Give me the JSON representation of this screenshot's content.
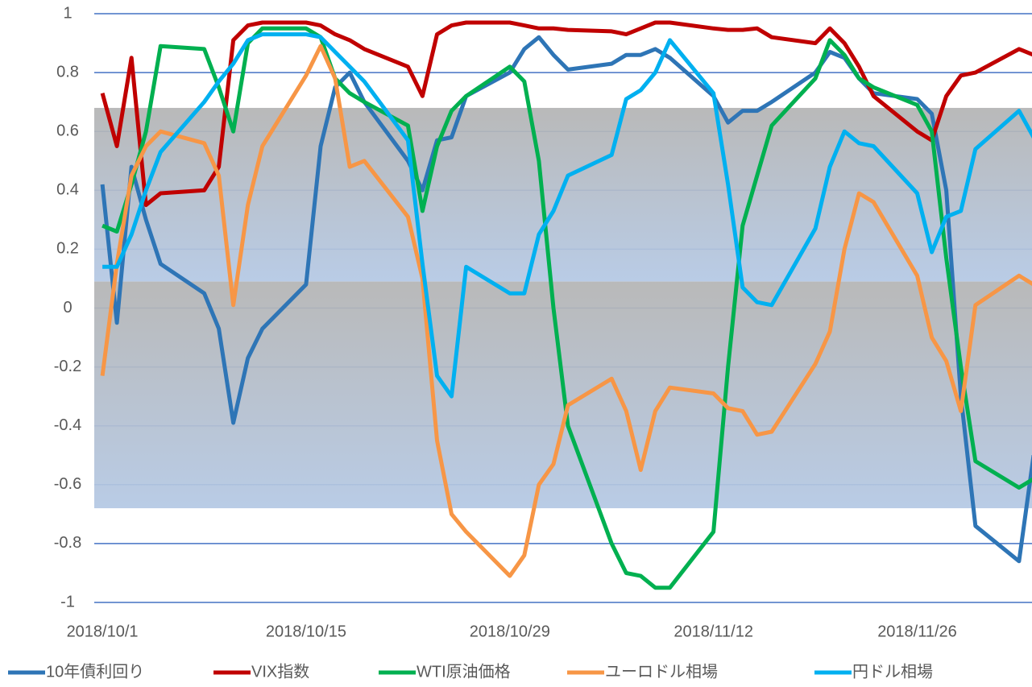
{
  "chart_data": {
    "type": "line",
    "x": [
      "2018/10/1",
      "2018/10/2",
      "2018/10/3",
      "2018/10/4",
      "2018/10/5",
      "2018/10/8",
      "2018/10/9",
      "2018/10/10",
      "2018/10/11",
      "2018/10/12",
      "2018/10/15",
      "2018/10/16",
      "2018/10/17",
      "2018/10/18",
      "2018/10/19",
      "2018/10/22",
      "2018/10/23",
      "2018/10/24",
      "2018/10/25",
      "2018/10/26",
      "2018/10/29",
      "2018/10/30",
      "2018/10/31",
      "2018/11/1",
      "2018/11/2",
      "2018/11/5",
      "2018/11/6",
      "2018/11/7",
      "2018/11/8",
      "2018/11/9",
      "2018/11/12",
      "2018/11/13",
      "2018/11/14",
      "2018/11/15",
      "2018/11/16",
      "2018/11/19",
      "2018/11/20",
      "2018/11/21",
      "2018/11/22",
      "2018/11/23",
      "2018/11/26",
      "2018/11/27",
      "2018/11/28",
      "2018/11/29",
      "2018/11/30",
      "2018/12/3",
      "2018/12/4"
    ],
    "series": [
      {
        "name": "10年債利回り",
        "color": "#2e75b6",
        "values": [
          0.42,
          -0.05,
          0.48,
          0.3,
          0.15,
          0.05,
          -0.07,
          -0.39,
          -0.17,
          -0.07,
          0.08,
          0.55,
          0.75,
          0.8,
          0.7,
          0.5,
          0.4,
          0.57,
          0.58,
          0.72,
          0.8,
          0.88,
          0.92,
          0.86,
          0.81,
          0.83,
          0.86,
          0.86,
          0.88,
          0.85,
          0.72,
          0.63,
          0.67,
          0.67,
          0.7,
          0.8,
          0.87,
          0.85,
          0.78,
          0.73,
          0.71,
          0.66,
          0.4,
          -0.3,
          -0.74,
          -0.86,
          -0.5
        ]
      },
      {
        "name": "VIX指数",
        "color": "#c00000",
        "values": [
          0.73,
          0.55,
          0.85,
          0.35,
          0.39,
          0.4,
          0.48,
          0.91,
          0.96,
          0.97,
          0.97,
          0.96,
          0.93,
          0.91,
          0.88,
          0.82,
          0.72,
          0.93,
          0.96,
          0.97,
          0.97,
          0.96,
          0.95,
          0.95,
          0.945,
          0.94,
          0.93,
          0.95,
          0.97,
          0.97,
          0.95,
          0.945,
          0.945,
          0.95,
          0.92,
          0.9,
          0.95,
          0.9,
          0.82,
          0.72,
          0.6,
          0.57,
          0.72,
          0.79,
          0.8,
          0.88,
          0.86
        ]
      },
      {
        "name": "WTI原油価格",
        "color": "#00b050",
        "values": [
          0.28,
          0.26,
          0.42,
          0.6,
          0.89,
          0.88,
          0.75,
          0.6,
          0.9,
          0.95,
          0.95,
          0.92,
          0.78,
          0.73,
          0.7,
          0.62,
          0.33,
          0.55,
          0.67,
          0.72,
          0.82,
          0.77,
          0.5,
          0.0,
          -0.4,
          -0.8,
          -0.9,
          -0.91,
          -0.95,
          -0.95,
          -0.76,
          -0.2,
          0.28,
          0.45,
          0.62,
          0.78,
          0.91,
          0.86,
          0.78,
          0.75,
          0.69,
          0.6,
          0.17,
          -0.2,
          -0.52,
          -0.61,
          -0.58
        ]
      },
      {
        "name": "ユーロドル相場",
        "color": "#f79646",
        "values": [
          -0.23,
          0.15,
          0.45,
          0.55,
          0.6,
          0.56,
          0.45,
          0.01,
          0.35,
          0.55,
          0.79,
          0.89,
          0.78,
          0.48,
          0.5,
          0.31,
          0.1,
          -0.45,
          -0.7,
          -0.76,
          -0.91,
          -0.84,
          -0.6,
          -0.53,
          -0.33,
          -0.24,
          -0.35,
          -0.55,
          -0.35,
          -0.27,
          -0.29,
          -0.34,
          -0.35,
          -0.43,
          -0.42,
          -0.19,
          -0.08,
          0.2,
          0.39,
          0.36,
          0.11,
          -0.1,
          -0.18,
          -0.35,
          0.01,
          0.11,
          0.08
        ]
      },
      {
        "name": "円ドル相場",
        "color": "#00b0f0",
        "values": [
          0.14,
          0.14,
          0.25,
          0.4,
          0.53,
          0.7,
          0.77,
          0.83,
          0.91,
          0.93,
          0.93,
          0.92,
          0.87,
          0.82,
          0.77,
          0.57,
          0.15,
          -0.23,
          -0.3,
          0.14,
          0.05,
          0.05,
          0.25,
          0.33,
          0.45,
          0.52,
          0.71,
          0.74,
          0.8,
          0.91,
          0.73,
          0.42,
          0.07,
          0.02,
          0.01,
          0.27,
          0.48,
          0.6,
          0.56,
          0.55,
          0.39,
          0.19,
          0.31,
          0.33,
          0.54,
          0.67,
          0.58
        ]
      }
    ],
    "bands": [
      {
        "from": 0.09,
        "to": 0.68
      },
      {
        "from": -0.68,
        "to": 0.09
      }
    ],
    "xlim": [
      "2018/9/30",
      "2018/12/4"
    ],
    "xticks": [
      "2018/10/1",
      "2018/10/15",
      "2018/10/29",
      "2018/11/12",
      "2018/11/26"
    ],
    "ylim": [
      -1,
      1
    ],
    "yticks": [
      1,
      0.8,
      0.6,
      0.4,
      0.2,
      0,
      -0.2,
      -0.4,
      -0.6,
      -0.8,
      -1
    ],
    "grid": true,
    "legend": "bottom"
  }
}
